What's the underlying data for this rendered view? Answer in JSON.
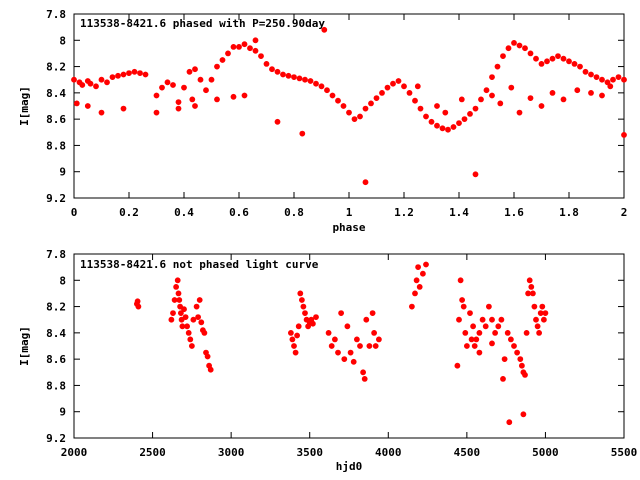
{
  "chart_data": [
    {
      "type": "scatter",
      "title": "113538-8421.6 phased with P=250.90day",
      "xlabel": "phase",
      "ylabel": "I[mag]",
      "xlim": [
        0,
        2
      ],
      "ylim": [
        7.8,
        9.2
      ],
      "y_inverted": true,
      "xticks": [
        "0",
        "0.2",
        "0.4",
        "0.6",
        "0.8",
        "1",
        "1.2",
        "1.4",
        "1.6",
        "1.8",
        "2"
      ],
      "yticks": [
        "7.8",
        "8",
        "8.2",
        "8.4",
        "8.6",
        "8.8",
        "9",
        "9.2"
      ],
      "marker_color": "#ff0000",
      "series": [
        {
          "x": [
            0.0,
            0.02,
            0.03,
            0.05,
            0.06,
            0.08,
            0.1,
            0.12,
            0.14,
            0.16,
            0.18,
            0.2,
            0.22,
            0.24,
            0.26,
            0.3,
            0.32,
            0.34,
            0.36,
            0.38,
            0.4,
            0.42,
            0.44,
            0.46,
            0.48,
            0.5,
            0.52,
            0.54,
            0.56,
            0.58,
            0.6,
            0.62,
            0.64,
            0.66,
            0.68,
            0.7,
            0.72,
            0.74,
            0.76,
            0.78,
            0.8,
            0.82,
            0.84,
            0.86,
            0.88,
            0.9,
            0.92,
            0.94,
            0.96,
            0.98,
            1.0,
            1.02,
            1.04,
            1.06,
            1.08,
            1.1,
            1.12,
            1.14,
            1.16,
            1.18,
            1.2,
            1.22,
            1.24,
            1.26,
            1.28,
            1.3,
            1.32,
            1.34,
            1.36,
            1.38,
            1.4,
            1.42,
            1.44,
            1.46,
            1.48,
            1.5,
            1.52,
            1.54,
            1.56,
            1.58,
            1.6,
            1.62,
            1.64,
            1.66,
            1.68,
            1.7,
            1.72,
            1.74,
            1.76,
            1.78,
            1.8,
            1.82,
            1.84,
            1.86,
            1.88,
            1.9,
            1.92,
            1.94,
            1.96,
            1.98,
            2.0,
            0.05,
            0.1,
            0.38,
            0.43,
            0.52,
            0.58,
            0.66,
            0.83,
            0.91,
            1.06,
            1.35,
            1.46,
            1.55,
            1.62,
            1.7,
            1.78,
            1.88,
            1.95,
            2.0,
            0.01,
            0.18,
            0.3,
            0.44,
            0.62,
            0.74,
            1.25,
            1.32,
            1.41,
            1.52,
            1.59,
            1.66,
            1.74,
            1.83,
            1.92
          ],
          "y": [
            8.3,
            8.32,
            8.34,
            8.31,
            8.33,
            8.35,
            8.3,
            8.32,
            8.28,
            8.27,
            8.26,
            8.25,
            8.24,
            8.25,
            8.26,
            8.42,
            8.36,
            8.32,
            8.34,
            8.47,
            8.36,
            8.24,
            8.22,
            8.3,
            8.38,
            8.3,
            8.2,
            8.15,
            8.1,
            8.05,
            8.05,
            8.03,
            8.06,
            8.08,
            8.12,
            8.18,
            8.22,
            8.24,
            8.26,
            8.27,
            8.28,
            8.29,
            8.3,
            8.31,
            8.33,
            8.35,
            8.38,
            8.42,
            8.46,
            8.5,
            8.55,
            8.6,
            8.58,
            8.52,
            8.48,
            8.44,
            8.4,
            8.36,
            8.33,
            8.31,
            8.35,
            8.4,
            8.46,
            8.52,
            8.58,
            8.62,
            8.65,
            8.67,
            8.68,
            8.66,
            8.63,
            8.6,
            8.56,
            8.52,
            8.45,
            8.38,
            8.28,
            8.2,
            8.12,
            8.06,
            8.02,
            8.04,
            8.06,
            8.1,
            8.14,
            8.18,
            8.16,
            8.14,
            8.12,
            8.14,
            8.16,
            8.18,
            8.2,
            8.24,
            8.26,
            8.28,
            8.3,
            8.32,
            8.3,
            8.28,
            8.3,
            8.5,
            8.55,
            8.52,
            8.45,
            8.45,
            8.43,
            8.0,
            8.71,
            7.92,
            9.08,
            8.55,
            9.02,
            8.48,
            8.55,
            8.5,
            8.45,
            8.4,
            8.35,
            8.72,
            8.48,
            8.52,
            8.55,
            8.5,
            8.42,
            8.62,
            8.35,
            8.5,
            8.45,
            8.42,
            8.36,
            8.44,
            8.4,
            8.38,
            8.42
          ]
        }
      ]
    },
    {
      "type": "scatter",
      "title": "113538-8421.6 not phased light curve",
      "xlabel": "hjd0",
      "ylabel": "I[mag]",
      "xlim": [
        2000,
        5500
      ],
      "ylim": [
        7.8,
        9.2
      ],
      "y_inverted": true,
      "xticks": [
        "2000",
        "2500",
        "3000",
        "3500",
        "4000",
        "4500",
        "5000",
        "5500"
      ],
      "yticks": [
        "7.8",
        "8",
        "8.2",
        "8.4",
        "8.6",
        "8.8",
        "9",
        "9.2"
      ],
      "marker_color": "#ff0000",
      "series": [
        {
          "x": [
            2400,
            2405,
            2410,
            2620,
            2630,
            2640,
            2650,
            2660,
            2665,
            2670,
            2675,
            2680,
            2685,
            2690,
            2700,
            2710,
            2720,
            2730,
            2740,
            2750,
            2760,
            2780,
            2790,
            2800,
            2810,
            2820,
            2830,
            2840,
            2850,
            2860,
            2870,
            3380,
            3390,
            3400,
            3410,
            3420,
            3430,
            3440,
            3450,
            3460,
            3470,
            3480,
            3490,
            3500,
            3510,
            3520,
            3540,
            3620,
            3640,
            3660,
            3680,
            3700,
            3720,
            3740,
            3760,
            3780,
            3800,
            3820,
            3840,
            3850,
            3860,
            3880,
            3900,
            3910,
            3920,
            3940,
            4150,
            4170,
            4180,
            4190,
            4200,
            4220,
            4240,
            4440,
            4450,
            4460,
            4470,
            4480,
            4490,
            4500,
            4520,
            4540,
            4560,
            4580,
            4600,
            4620,
            4640,
            4660,
            4680,
            4700,
            4720,
            4740,
            4760,
            4780,
            4800,
            4820,
            4840,
            4850,
            4860,
            4870,
            4880,
            4890,
            4900,
            4910,
            4920,
            4930,
            4940,
            4950,
            4960,
            4970,
            4980,
            4990,
            5000
          ],
          "y": [
            8.18,
            8.16,
            8.2,
            8.3,
            8.25,
            8.15,
            8.05,
            8.0,
            8.1,
            8.15,
            8.2,
            8.25,
            8.3,
            8.35,
            8.22,
            8.28,
            8.35,
            8.4,
            8.45,
            8.5,
            8.3,
            8.2,
            8.28,
            8.15,
            8.32,
            8.38,
            8.4,
            8.55,
            8.58,
            8.65,
            8.68,
            8.4,
            8.45,
            8.5,
            8.55,
            8.42,
            8.35,
            8.1,
            8.15,
            8.2,
            8.25,
            8.3,
            8.35,
            8.32,
            8.3,
            8.33,
            8.28,
            8.4,
            8.5,
            8.45,
            8.55,
            8.25,
            8.6,
            8.35,
            8.55,
            8.62,
            8.45,
            8.5,
            8.7,
            8.75,
            8.3,
            8.5,
            8.25,
            8.4,
            8.5,
            8.45,
            8.2,
            8.1,
            8.0,
            7.9,
            8.05,
            7.95,
            7.88,
            8.65,
            8.3,
            8.0,
            8.15,
            8.2,
            8.4,
            8.5,
            8.25,
            8.35,
            8.45,
            8.4,
            8.3,
            8.35,
            8.2,
            8.3,
            8.4,
            8.35,
            8.3,
            8.6,
            8.4,
            8.45,
            8.5,
            8.55,
            8.6,
            8.65,
            8.7,
            8.72,
            8.4,
            8.1,
            8.0,
            8.05,
            8.1,
            8.2,
            8.3,
            8.35,
            8.4,
            8.25,
            8.2,
            8.3,
            8.25
          ]
        },
        {
          "x": [
            4530,
            4770,
            4860,
            4550,
            4580,
            4660,
            4730
          ],
          "y": [
            8.45,
            9.08,
            9.02,
            8.5,
            8.55,
            8.48,
            8.75
          ]
        }
      ]
    }
  ]
}
